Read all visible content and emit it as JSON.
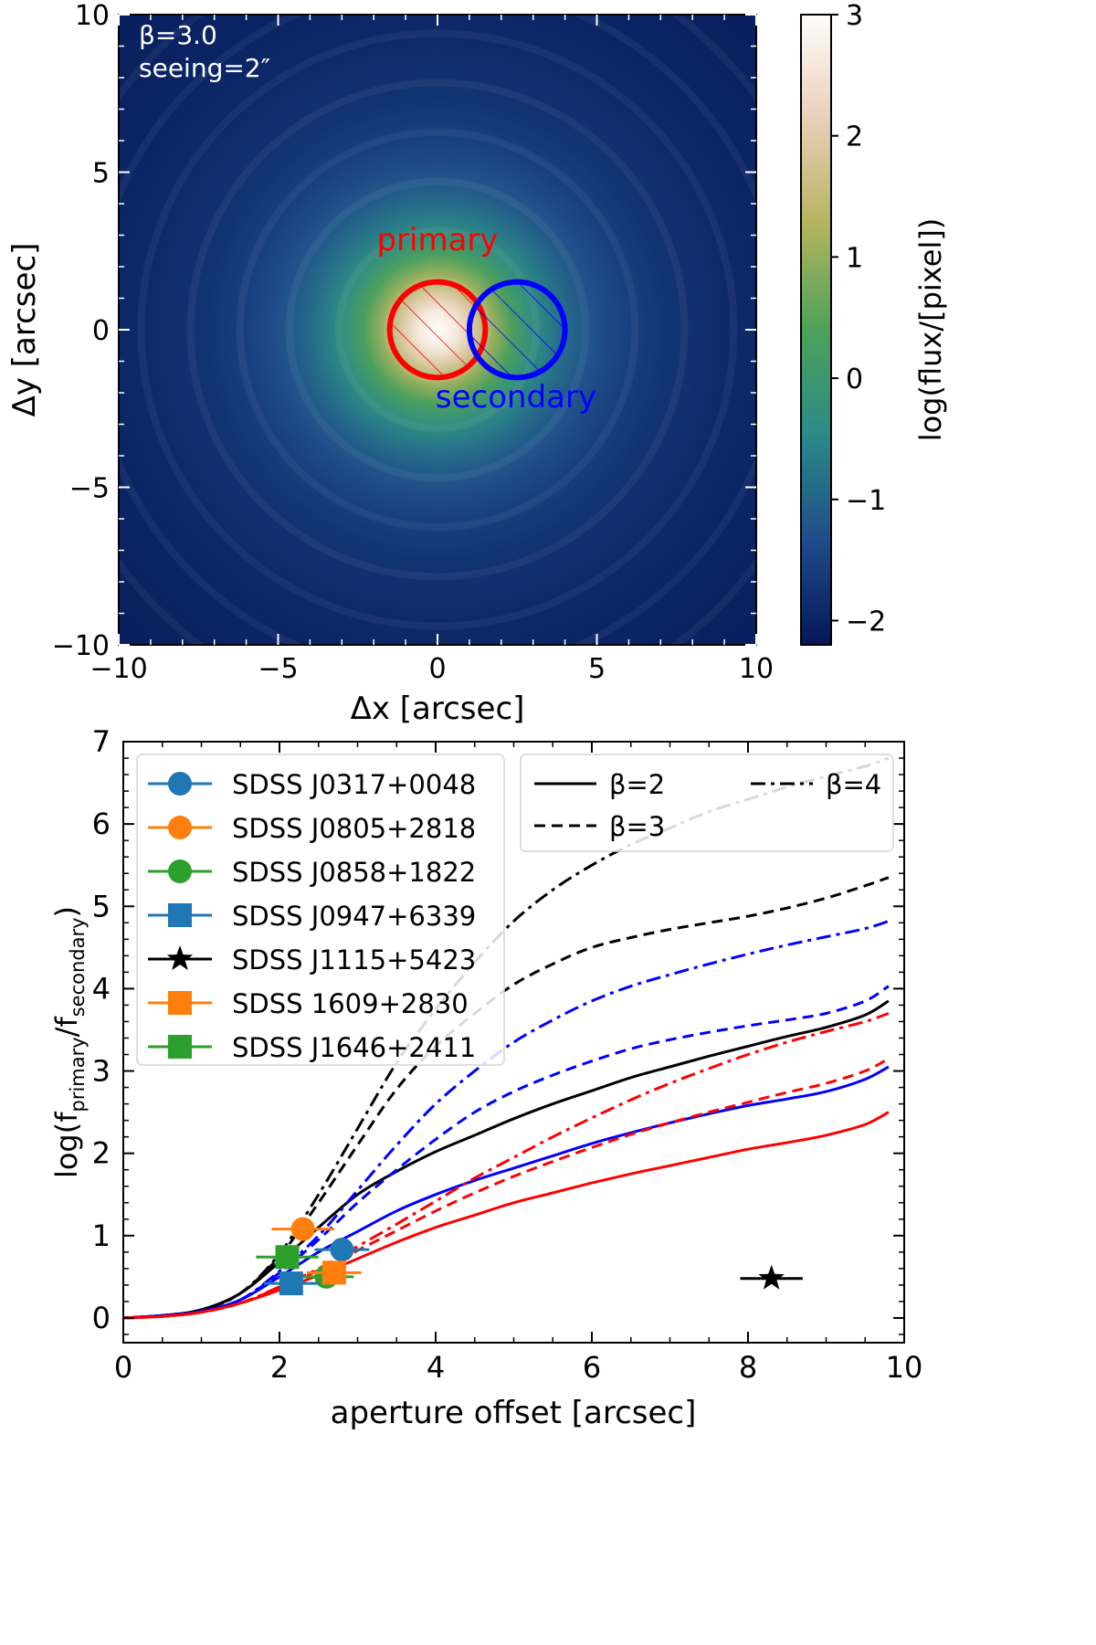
{
  "chart_data": [
    {
      "type": "heatmap",
      "annotation_beta": "β=3.0",
      "annotation_seeing": "seeing=2″",
      "xlabel": "Δx [arcsec]",
      "ylabel": "Δy [arcsec]",
      "xlim": [
        -10,
        10
      ],
      "ylim": [
        -10,
        10
      ],
      "xticks": [
        -10,
        -5,
        0,
        5,
        10
      ],
      "yticks": [
        -10,
        -5,
        0,
        5,
        10
      ],
      "xtick_labels": [
        "−10",
        "−5",
        "0",
        "5",
        "10"
      ],
      "ytick_labels": [
        "−10",
        "−5",
        "0",
        "5",
        "10"
      ],
      "peak_log_flux": 3,
      "edge_log_flux": -2.2,
      "apertures": [
        {
          "name": "primary",
          "label": "primary",
          "center": [
            0,
            0
          ],
          "radius": 1.5,
          "color": "#ff0000"
        },
        {
          "name": "secondary",
          "label": "secondary",
          "center": [
            2.5,
            0
          ],
          "radius": 1.5,
          "color": "#0000ff"
        }
      ],
      "colorbar": {
        "label": "log(flux/[pixel])",
        "range": [
          -2.2,
          3
        ],
        "ticks": [
          -2,
          -1,
          0,
          1,
          2,
          3
        ],
        "tick_labels": [
          "−2",
          "−1",
          "0",
          "1",
          "2",
          "3"
        ],
        "colors": [
          "#051757",
          "#1f4c8a",
          "#2c8a88",
          "#4da15a",
          "#b3b45f",
          "#e9cfb8",
          "#fffdfc"
        ]
      }
    },
    {
      "type": "line",
      "xlabel": "aperture offset [arcsec]",
      "ylabel_main": "log(f",
      "ylabel_sub1": "primary",
      "ylabel_mid": "/f",
      "ylabel_sub2": "secondary",
      "ylabel_end": ")",
      "xlim": [
        0,
        10
      ],
      "ylim": [
        -0.3,
        7
      ],
      "xticks": [
        0,
        2,
        4,
        6,
        8,
        10
      ],
      "yticks": [
        0,
        1,
        2,
        3,
        4,
        5,
        6,
        7
      ],
      "x_grid": [
        0,
        0.5,
        1,
        1.5,
        2,
        2.5,
        3,
        3.5,
        4,
        4.5,
        5,
        5.5,
        6,
        6.5,
        7,
        7.5,
        8,
        8.5,
        9,
        9.5,
        9.8
      ],
      "curves": [
        {
          "beta": 2,
          "style": "solid",
          "color": "#000000",
          "values": [
            0,
            0.03,
            0.1,
            0.3,
            0.68,
            1.1,
            1.5,
            1.78,
            2.02,
            2.22,
            2.42,
            2.6,
            2.76,
            2.92,
            3.05,
            3.18,
            3.3,
            3.42,
            3.53,
            3.68,
            3.85
          ]
        },
        {
          "beta": 3,
          "style": "dashed",
          "color": "#000000",
          "values": [
            0,
            0.03,
            0.1,
            0.3,
            0.75,
            1.4,
            2.1,
            2.78,
            3.3,
            3.7,
            4.05,
            4.3,
            4.5,
            4.62,
            4.72,
            4.8,
            4.88,
            4.98,
            5.1,
            5.25,
            5.35
          ]
        },
        {
          "beta": 4,
          "style": "dashdot",
          "color": "#000000",
          "values": [
            0,
            0.03,
            0.1,
            0.3,
            0.78,
            1.5,
            2.3,
            3.1,
            3.75,
            4.32,
            4.82,
            5.2,
            5.5,
            5.75,
            5.95,
            6.15,
            6.3,
            6.45,
            6.58,
            6.7,
            6.8
          ]
        },
        {
          "beta": 2,
          "style": "solid",
          "color": "#0000ff",
          "values": [
            0,
            0.03,
            0.08,
            0.22,
            0.5,
            0.8,
            1.05,
            1.3,
            1.5,
            1.67,
            1.82,
            1.97,
            2.12,
            2.25,
            2.37,
            2.48,
            2.58,
            2.66,
            2.75,
            2.9,
            3.05
          ]
        },
        {
          "beta": 3,
          "style": "dashed",
          "color": "#0000ff",
          "values": [
            0,
            0.03,
            0.08,
            0.22,
            0.55,
            0.95,
            1.4,
            1.8,
            2.17,
            2.5,
            2.75,
            2.95,
            3.12,
            3.27,
            3.38,
            3.47,
            3.55,
            3.62,
            3.7,
            3.85,
            4.03
          ]
        },
        {
          "beta": 4,
          "style": "dashdot",
          "color": "#0000ff",
          "values": [
            0,
            0.03,
            0.08,
            0.22,
            0.57,
            1.0,
            1.55,
            2.1,
            2.6,
            3.0,
            3.35,
            3.62,
            3.85,
            4.03,
            4.17,
            4.3,
            4.42,
            4.53,
            4.63,
            4.73,
            4.82
          ]
        },
        {
          "beta": 2,
          "style": "solid",
          "color": "#ff0000",
          "values": [
            0,
            0.02,
            0.07,
            0.18,
            0.34,
            0.52,
            0.72,
            0.92,
            1.1,
            1.25,
            1.4,
            1.52,
            1.64,
            1.75,
            1.85,
            1.95,
            2.05,
            2.13,
            2.22,
            2.35,
            2.5
          ]
        },
        {
          "beta": 3,
          "style": "dashed",
          "color": "#ff0000",
          "values": [
            0,
            0.02,
            0.07,
            0.18,
            0.37,
            0.58,
            0.82,
            1.06,
            1.3,
            1.52,
            1.72,
            1.9,
            2.07,
            2.23,
            2.37,
            2.5,
            2.62,
            2.74,
            2.85,
            3.0,
            3.15
          ]
        },
        {
          "beta": 4,
          "style": "dashdot",
          "color": "#ff0000",
          "values": [
            0,
            0.02,
            0.07,
            0.18,
            0.38,
            0.6,
            0.87,
            1.14,
            1.42,
            1.7,
            1.95,
            2.2,
            2.43,
            2.65,
            2.85,
            3.03,
            3.2,
            3.35,
            3.48,
            3.6,
            3.7
          ]
        }
      ],
      "curve_legend": [
        {
          "label": "β=2",
          "style": "solid"
        },
        {
          "label": "β=3",
          "style": "dashed"
        },
        {
          "label": "β=4",
          "style": "dashdot"
        }
      ],
      "points": [
        {
          "name": "SDSS J0317+0048",
          "marker": "circle",
          "color": "#1f77b4",
          "x": 2.8,
          "y": 0.83,
          "xerr": 0.35
        },
        {
          "name": "SDSS J0805+2818",
          "marker": "circle",
          "color": "#ff7f0e",
          "x": 2.3,
          "y": 1.08,
          "xerr": 0.4
        },
        {
          "name": "SDSS J0858+1822",
          "marker": "circle",
          "color": "#2ca02c",
          "x": 2.6,
          "y": 0.5,
          "xerr": 0.35
        },
        {
          "name": "SDSS J0947+6339",
          "marker": "square",
          "color": "#1f77b4",
          "x": 2.15,
          "y": 0.42,
          "xerr": 0.35
        },
        {
          "name": "SDSS J1115+5423",
          "marker": "star",
          "color": "#000000",
          "x": 8.3,
          "y": 0.48,
          "xerr": 0.4
        },
        {
          "name": "SDSS 1609+2830",
          "marker": "square",
          "color": "#ff7f0e",
          "x": 2.7,
          "y": 0.55,
          "xerr": 0.35
        },
        {
          "name": "SDSS J1646+2411",
          "marker": "square",
          "color": "#2ca02c",
          "x": 2.1,
          "y": 0.74,
          "xerr": 0.4
        }
      ]
    }
  ]
}
